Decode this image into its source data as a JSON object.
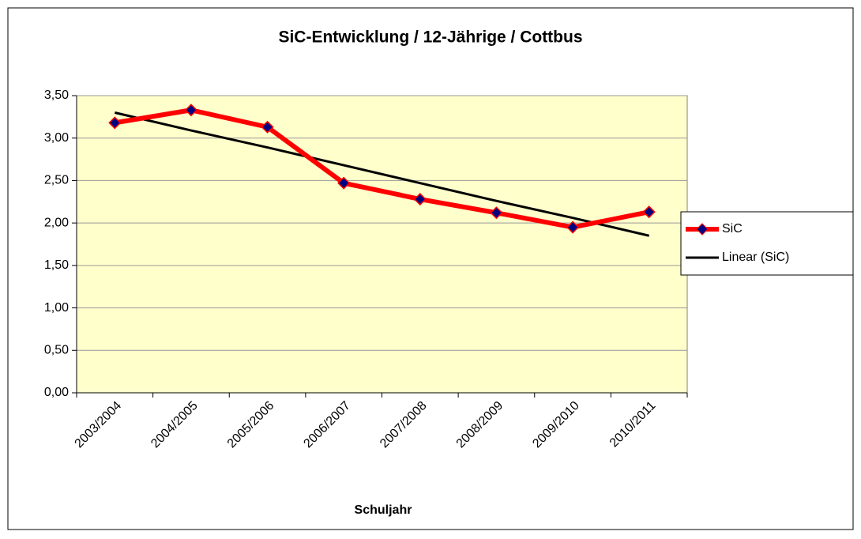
{
  "chart_data": {
    "type": "line",
    "title": "SiC-Entwicklung / 12-Jährige / Cottbus",
    "x_label": "Schuljahr",
    "categories": [
      "2003/2004",
      "2004/2005",
      "2005/2006",
      "2006/2007",
      "2007/2008",
      "2008/2009",
      "2009/2010",
      "2010/2011"
    ],
    "series": [
      {
        "name": "SiC",
        "color": "#ff0000",
        "marker_color": "#000080",
        "values": [
          3.18,
          3.33,
          3.13,
          2.47,
          2.28,
          2.12,
          1.95,
          2.13
        ]
      },
      {
        "name": "Linear (SiC)",
        "color": "#000000",
        "values": [
          3.3,
          3.09,
          2.89,
          2.68,
          2.47,
          2.26,
          2.06,
          1.85
        ]
      }
    ],
    "ylim": [
      0,
      3.5
    ],
    "yticks": [
      {
        "value": 0,
        "label": "0,00"
      },
      {
        "value": 0.5,
        "label": "0,50"
      },
      {
        "value": 1,
        "label": "1,00"
      },
      {
        "value": 1.5,
        "label": "1,50"
      },
      {
        "value": 2,
        "label": "2,00"
      },
      {
        "value": 2.5,
        "label": "2,50"
      },
      {
        "value": 3,
        "label": "3,00"
      },
      {
        "value": 3.5,
        "label": "3,50"
      }
    ],
    "grid": true,
    "plot_background": "#ffffcc",
    "legend": "right"
  }
}
